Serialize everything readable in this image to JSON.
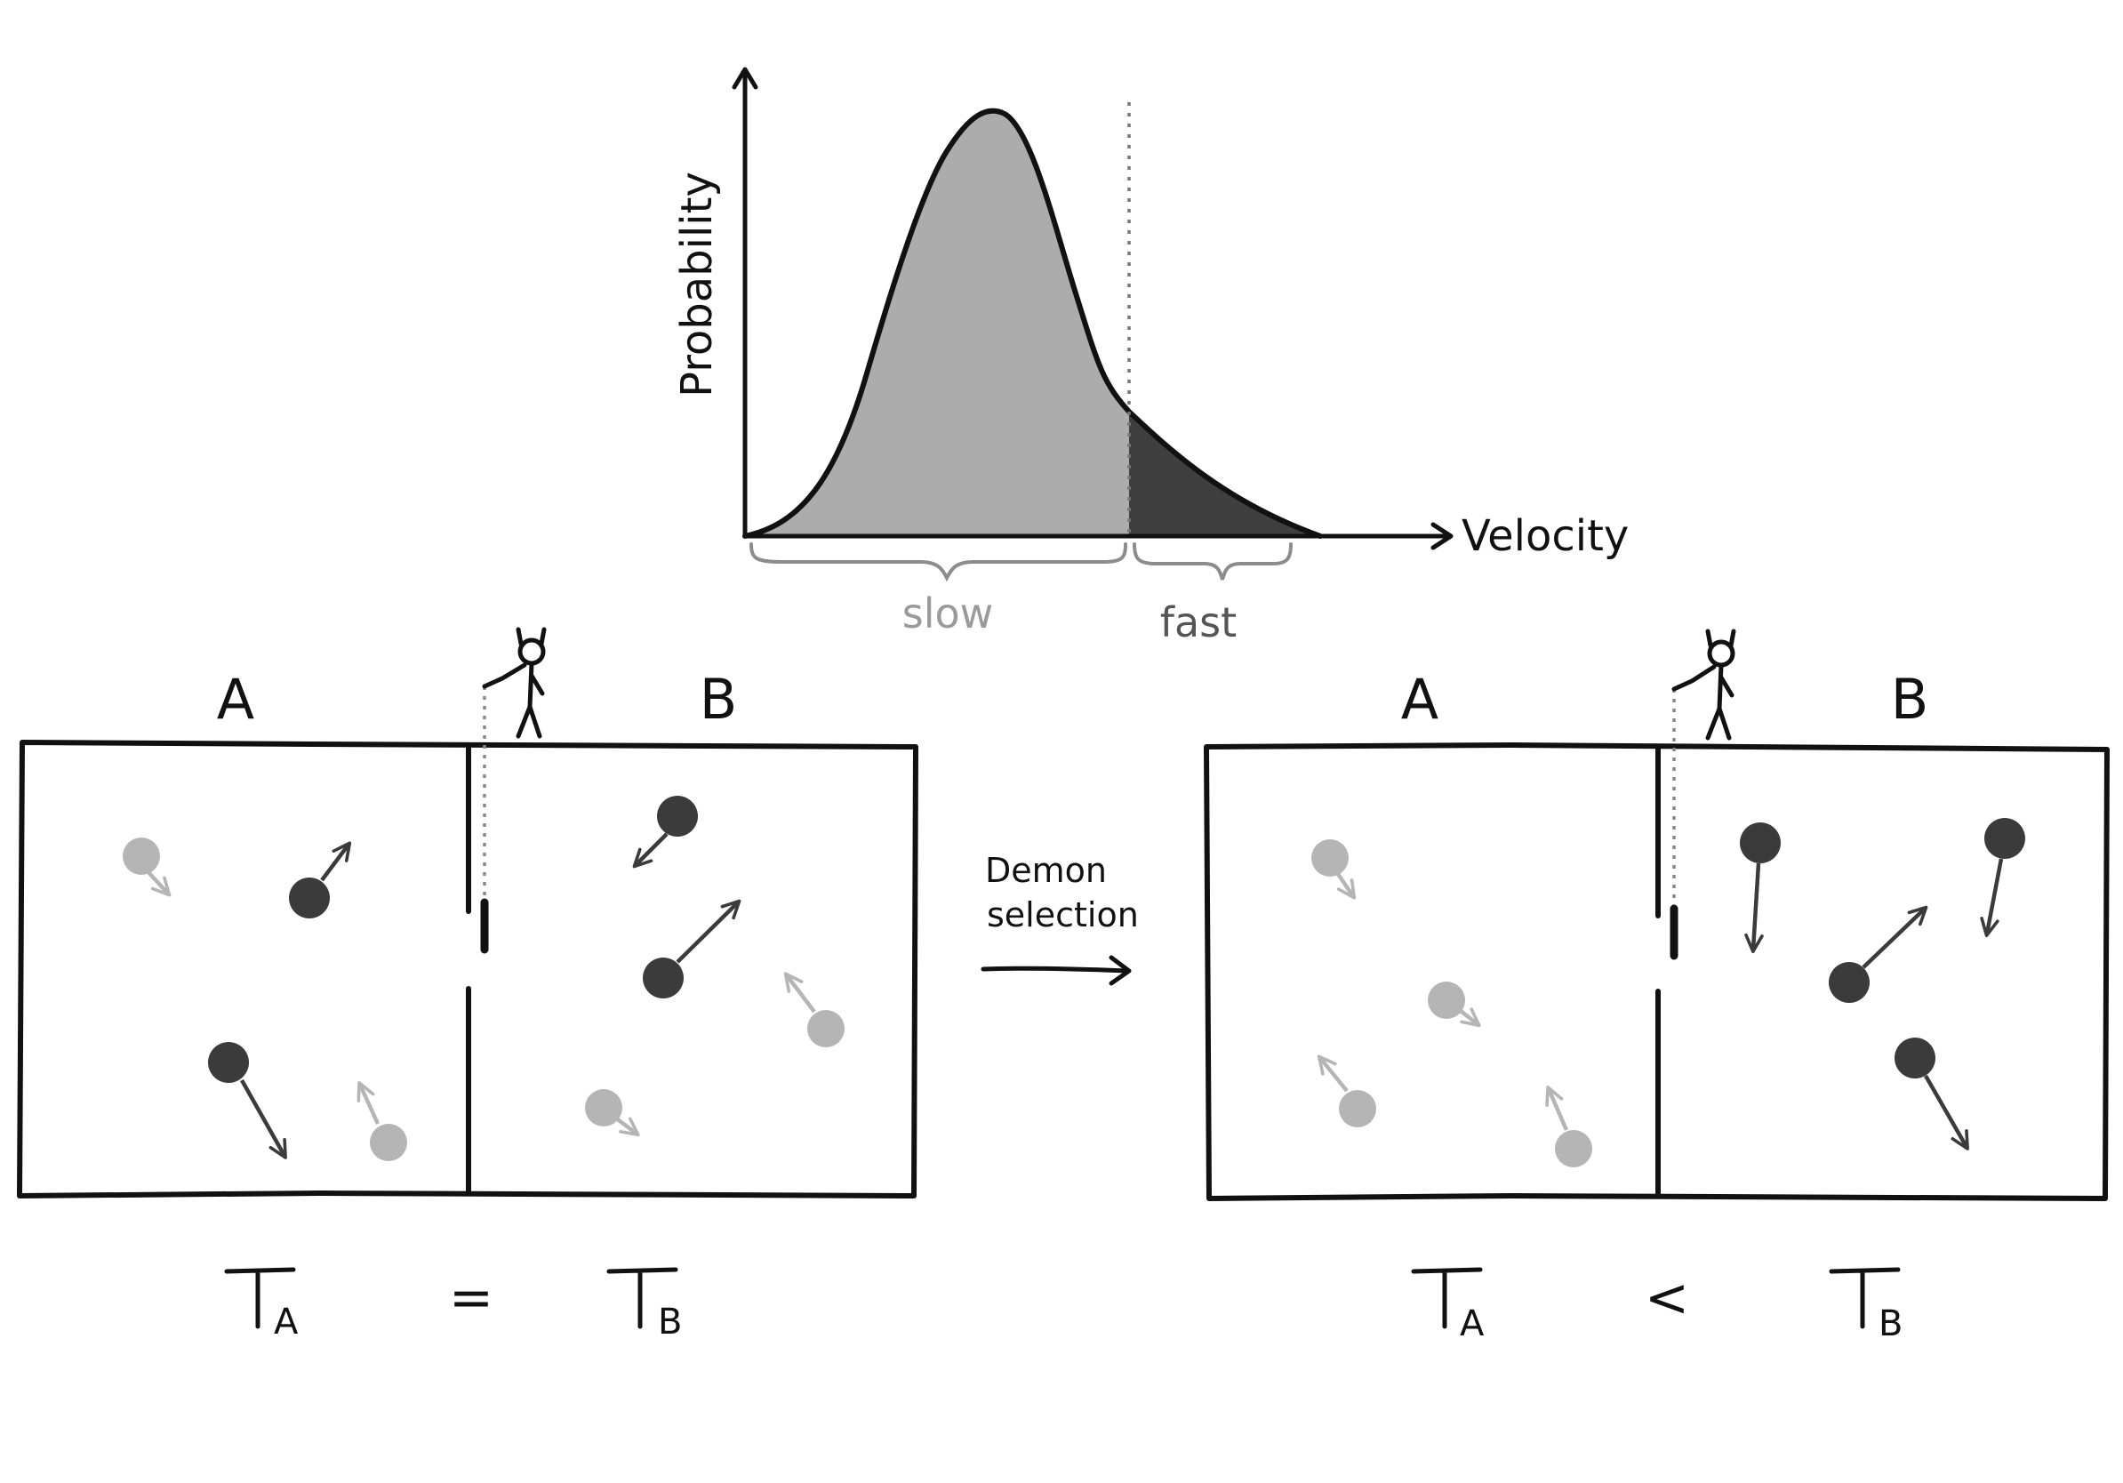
{
  "graph": {
    "y_axis_label": "Probability",
    "x_axis_label": "Velocity",
    "slow_label": "slow",
    "fast_label": "fast",
    "colors": {
      "slow_fill": "#acacac",
      "fast_fill": "#3f3f3f",
      "slow_text": "#9a9a9a",
      "fast_text": "#555555"
    }
  },
  "arrow": {
    "label_line1": "Demon",
    "label_line2": "selection"
  },
  "before": {
    "left_label": "A",
    "right_label": "B",
    "relation": {
      "left_sub": "A",
      "op": "=",
      "right_sub": "B"
    }
  },
  "after": {
    "left_label": "A",
    "right_label": "B",
    "relation": {
      "left_sub": "A",
      "op": "<",
      "right_sub": "B"
    }
  },
  "particle_colors": {
    "fast": "#3b3b3b",
    "slow": "#b5b5b5"
  }
}
